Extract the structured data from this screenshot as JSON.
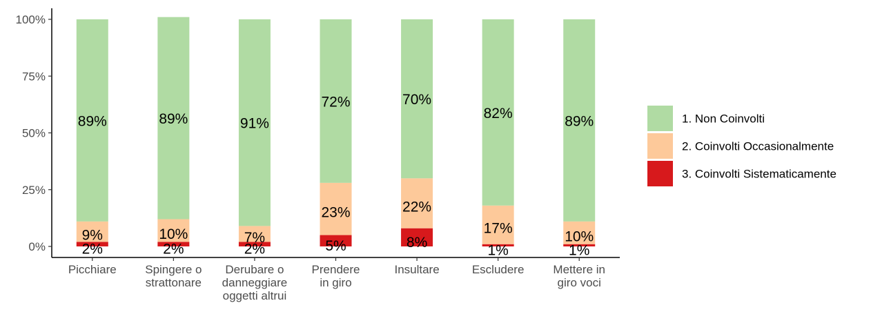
{
  "chart_data": {
    "type": "bar",
    "stacked": true,
    "percent": true,
    "categories": [
      [
        "Picchiare"
      ],
      [
        "Spingere o",
        "strattonare"
      ],
      [
        "Derubare o",
        "danneggiare",
        "oggetti altrui"
      ],
      [
        "Prendere",
        "in giro"
      ],
      [
        "Insultare"
      ],
      [
        "Escludere"
      ],
      [
        "Mettere in",
        "giro voci"
      ]
    ],
    "series": [
      {
        "name": "3. Coinvolti Sistematicamente",
        "color": "#d7191c",
        "values": [
          2,
          2,
          2,
          5,
          8,
          1,
          1
        ],
        "labels": [
          "2%",
          "2%",
          "2%",
          "5%",
          "8%",
          "1%",
          "1%"
        ]
      },
      {
        "name": "2. Coinvolti Occasionalmente",
        "color": "#fdc99a",
        "values": [
          9,
          10,
          7,
          23,
          22,
          17,
          10
        ],
        "labels": [
          "9%",
          "10%",
          "7%",
          "23%",
          "22%",
          "17%",
          "10%"
        ]
      },
      {
        "name": "1. Non Coinvolti",
        "color": "#b0dba3",
        "values": [
          89,
          89,
          91,
          72,
          70,
          82,
          89
        ],
        "labels": [
          "89%",
          "89%",
          "91%",
          "72%",
          "70%",
          "82%",
          "89%"
        ]
      }
    ],
    "legend_order": [
      2,
      1,
      0
    ],
    "yticks": [
      "0%",
      "25%",
      "50%",
      "75%",
      "100%"
    ],
    "ylim": [
      0,
      100
    ],
    "legend_position": "right",
    "grid": false
  }
}
